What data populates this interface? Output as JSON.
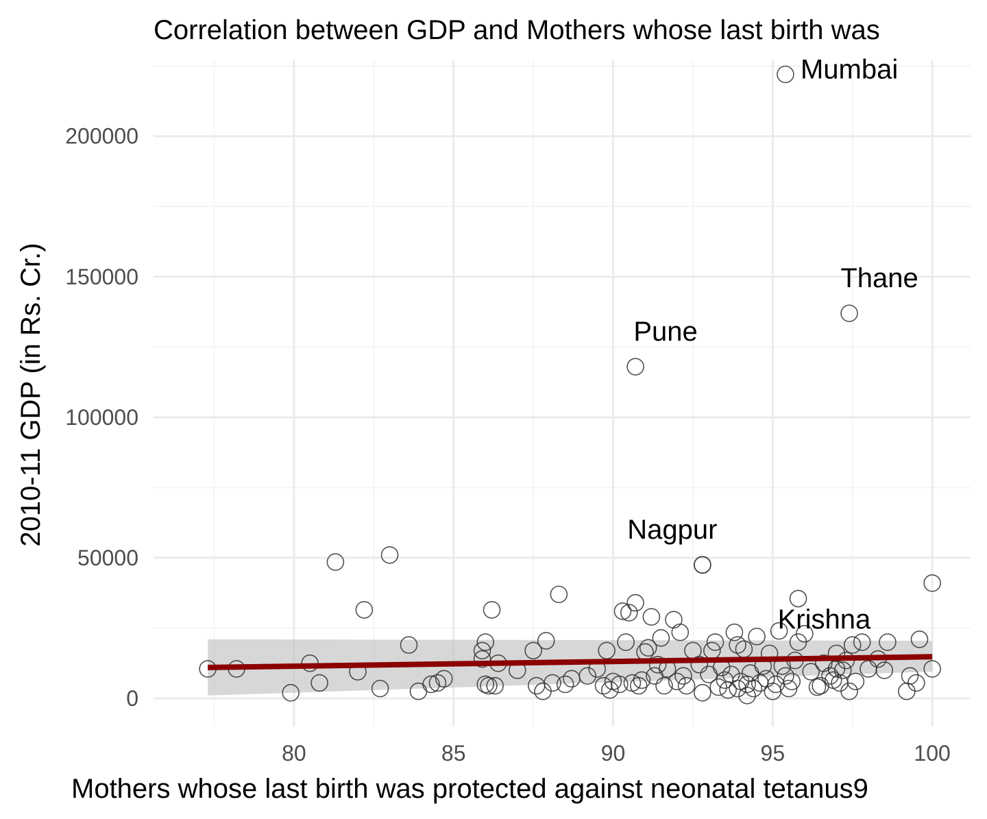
{
  "chart_data": {
    "type": "scatter",
    "title": "Correlation between GDP and Mothers whose last birth was",
    "xlabel": "Mothers whose last birth was protected against neonatal tetanus9",
    "ylabel": "2010-11 GDP (in Rs. Cr.)",
    "xlim": [
      75.6,
      101.2
    ],
    "ylim": [
      -10000,
      227000
    ],
    "x_ticks": [
      80,
      85,
      90,
      95,
      100
    ],
    "x_tick_labels": [
      "80",
      "85",
      "90",
      "95",
      "100"
    ],
    "y_ticks": [
      0,
      50000,
      100000,
      150000,
      200000
    ],
    "y_tick_labels": [
      "0",
      "50000",
      "100000",
      "150000",
      "200000"
    ],
    "grid": true,
    "legend": "none",
    "colors": {
      "points": "#333333",
      "trend_line": "#8b0000",
      "confidence_band": "#bdbdbd",
      "grid_major": "#ebebeb",
      "grid_minor": "#f4f4f4",
      "text": "#000000",
      "tick_text": "#4d4d4d"
    },
    "points": [
      [
        77.3,
        10500
      ],
      [
        78.2,
        10500
      ],
      [
        80.5,
        12500
      ],
      [
        81.3,
        48500
      ],
      [
        80.8,
        5500
      ],
      [
        79.9,
        2000
      ],
      [
        82.0,
        9500
      ],
      [
        82.2,
        31500
      ],
      [
        83.0,
        51000
      ],
      [
        82.7,
        3500
      ],
      [
        83.6,
        19000
      ],
      [
        83.9,
        2500
      ],
      [
        84.3,
        5000
      ],
      [
        84.5,
        5500
      ],
      [
        84.7,
        7000
      ],
      [
        85.9,
        17000
      ],
      [
        86.0,
        20000
      ],
      [
        85.9,
        14000
      ],
      [
        86.0,
        5000
      ],
      [
        86.1,
        4500
      ],
      [
        86.2,
        31500
      ],
      [
        86.4,
        12500
      ],
      [
        86.3,
        4500
      ],
      [
        87.0,
        10000
      ],
      [
        87.5,
        17000
      ],
      [
        87.6,
        4500
      ],
      [
        87.8,
        2500
      ],
      [
        87.9,
        20500
      ],
      [
        88.1,
        5500
      ],
      [
        88.3,
        37000
      ],
      [
        88.5,
        5000
      ],
      [
        88.7,
        7000
      ],
      [
        89.2,
        8000
      ],
      [
        89.5,
        10500
      ],
      [
        89.7,
        4500
      ],
      [
        89.8,
        17000
      ],
      [
        89.9,
        3000
      ],
      [
        90.0,
        6000
      ],
      [
        90.2,
        5000
      ],
      [
        90.3,
        31000
      ],
      [
        90.4,
        20000
      ],
      [
        90.5,
        30500
      ],
      [
        90.6,
        5500
      ],
      [
        90.7,
        34000
      ],
      [
        90.8,
        4500
      ],
      [
        90.9,
        6500
      ],
      [
        91.0,
        16500
      ],
      [
        91.1,
        18000
      ],
      [
        91.2,
        29000
      ],
      [
        91.3,
        8000
      ],
      [
        91.4,
        12000
      ],
      [
        91.5,
        21500
      ],
      [
        91.6,
        4500
      ],
      [
        91.7,
        10500
      ],
      [
        91.9,
        28000
      ],
      [
        92.0,
        6000
      ],
      [
        92.1,
        23500
      ],
      [
        92.2,
        8000
      ],
      [
        92.3,
        4500
      ],
      [
        92.5,
        17000
      ],
      [
        92.7,
        12000
      ],
      [
        92.8,
        2000
      ],
      [
        92.8,
        47500
      ],
      [
        93.0,
        8500
      ],
      [
        93.1,
        17000
      ],
      [
        93.2,
        20000
      ],
      [
        93.3,
        4000
      ],
      [
        93.4,
        11000
      ],
      [
        93.5,
        6500
      ],
      [
        93.6,
        3000
      ],
      [
        93.7,
        8500
      ],
      [
        93.8,
        23500
      ],
      [
        93.9,
        19000
      ],
      [
        94.0,
        6000
      ],
      [
        94.1,
        17500
      ],
      [
        94.2,
        1000
      ],
      [
        94.3,
        9000
      ],
      [
        94.4,
        3500
      ],
      [
        94.5,
        22000
      ],
      [
        94.6,
        5500
      ],
      [
        94.7,
        11500
      ],
      [
        94.8,
        7000
      ],
      [
        94.9,
        16000
      ],
      [
        95.0,
        2500
      ],
      [
        95.1,
        5000
      ],
      [
        95.2,
        24000
      ],
      [
        95.3,
        11500
      ],
      [
        95.4,
        8000
      ],
      [
        95.5,
        3500
      ],
      [
        95.7,
        13500
      ],
      [
        95.8,
        35500
      ],
      [
        96.0,
        23000
      ],
      [
        96.2,
        9500
      ],
      [
        96.4,
        4000
      ],
      [
        96.6,
        12500
      ],
      [
        96.8,
        8000
      ],
      [
        97.0,
        16000
      ],
      [
        97.1,
        5500
      ],
      [
        97.2,
        10000
      ],
      [
        97.3,
        13500
      ],
      [
        97.4,
        2500
      ],
      [
        97.5,
        19000
      ],
      [
        97.6,
        6000
      ],
      [
        97.8,
        20000
      ],
      [
        98.0,
        10500
      ],
      [
        98.3,
        14000
      ],
      [
        98.5,
        10000
      ],
      [
        98.6,
        20000
      ],
      [
        99.2,
        2500
      ],
      [
        99.3,
        8000
      ],
      [
        99.5,
        5500
      ],
      [
        99.6,
        21000
      ],
      [
        100.0,
        10500
      ],
      [
        100.0,
        41000
      ],
      [
        96.5,
        4500
      ],
      [
        96.9,
        6500
      ],
      [
        97.0,
        10500
      ],
      [
        93.9,
        3500
      ],
      [
        94.2,
        5000
      ],
      [
        95.6,
        6000
      ]
    ],
    "labeled_points": [
      {
        "name": "Mumbai",
        "x": 95.4,
        "y": 222000
      },
      {
        "name": "Thane",
        "x": 97.4,
        "y": 137000
      },
      {
        "name": "Pune",
        "x": 90.7,
        "y": 118000
      },
      {
        "name": "Nagpur",
        "x": 92.8,
        "y": 47500
      },
      {
        "name": "Krishna",
        "x": 95.8,
        "y": 20000
      }
    ],
    "trend_line": {
      "x": [
        77.3,
        100.0
      ],
      "y": [
        11000,
        14800
      ],
      "band_lower": [
        1000,
        9500
      ],
      "band_upper": [
        21000,
        20500
      ]
    }
  }
}
